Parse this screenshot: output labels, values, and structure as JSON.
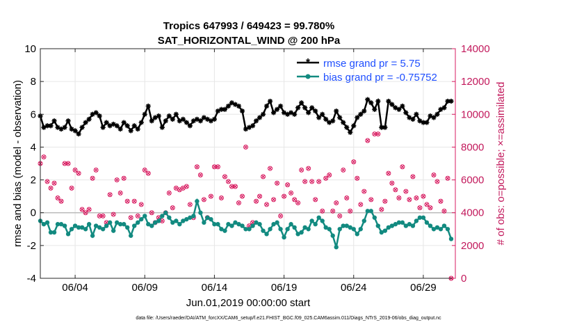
{
  "chart_data": {
    "type": "line",
    "title": "Tropics 647993 / 649423 = 99.780%",
    "subtitle": "SAT_HORIZONTAL_WIND @ 200 hPa",
    "xlabel": "Jun.01,2019 00:00:00 start",
    "ylabel": "rmse and bias (model - observation)",
    "y2label": "# of obs: o=possible; ×=assimilated",
    "xlim": [
      1.5,
      31.3
    ],
    "ylim": [
      -4,
      10
    ],
    "y2lim": [
      0,
      14000
    ],
    "x_ticks": [
      4,
      9,
      14,
      19,
      24,
      29
    ],
    "x_tick_labels": [
      "06/04",
      "06/09",
      "06/14",
      "06/19",
      "06/24",
      "06/29"
    ],
    "y_ticks": [
      -4,
      -2,
      0,
      2,
      4,
      6,
      8,
      10
    ],
    "y_tick_labels": [
      "-4",
      "-2",
      "0",
      "2",
      "4",
      "6",
      "8",
      "10"
    ],
    "y2_ticks": [
      0,
      2000,
      4000,
      6000,
      8000,
      10000,
      12000,
      14000
    ],
    "y2_tick_labels": [
      "0",
      "2000",
      "4000",
      "6000",
      "8000",
      "10000",
      "12000",
      "14000"
    ],
    "grid": true,
    "legend_position": "top-right",
    "footer": "data file: /Users/raeder/DAI/ATM_forcXX/CAM6_setup/f.e21.FHIST_BGC.f09_025.CAM6assim.011/Diags_NTrS_2019-06/obs_diag_output.nc",
    "colors": {
      "rmse": "#000000",
      "bias": "#128a80",
      "obs": "#d81b60",
      "zero_line": "#bbbbbb"
    },
    "series": [
      {
        "name": "rmse grand pr = 5.75",
        "x": [
          1.5,
          1.75,
          2,
          2.25,
          2.5,
          2.75,
          3,
          3.25,
          3.5,
          3.75,
          4,
          4.25,
          4.5,
          4.75,
          5,
          5.25,
          5.5,
          5.75,
          6,
          6.25,
          6.5,
          6.75,
          7,
          7.25,
          7.5,
          7.75,
          8,
          8.25,
          8.5,
          8.75,
          9,
          9.25,
          9.5,
          9.75,
          10,
          10.25,
          10.5,
          10.75,
          11,
          11.25,
          11.5,
          11.75,
          12,
          12.25,
          12.5,
          12.75,
          13,
          13.25,
          13.5,
          13.75,
          14,
          14.25,
          14.5,
          14.75,
          15,
          15.25,
          15.5,
          15.75,
          16,
          16.25,
          16.5,
          16.75,
          17,
          17.25,
          17.5,
          17.75,
          18,
          18.25,
          18.5,
          18.75,
          19,
          19.25,
          19.5,
          19.75,
          20,
          20.25,
          20.5,
          20.75,
          21,
          21.25,
          21.5,
          21.75,
          22,
          22.25,
          22.5,
          22.75,
          23,
          23.25,
          23.5,
          23.75,
          24,
          24.25,
          24.5,
          24.75,
          25,
          25.25,
          25.5,
          25.75,
          26,
          26.25,
          26.5,
          26.75,
          27,
          27.25,
          27.5,
          27.75,
          28,
          28.25,
          28.5,
          28.75,
          29,
          29.25,
          29.5,
          29.75,
          30,
          30.25,
          30.5,
          30.75,
          31
        ],
        "values": [
          5.9,
          5.2,
          5.3,
          5.3,
          5.6,
          5.2,
          5.1,
          5.2,
          5.6,
          5.1,
          5.0,
          4.8,
          5.2,
          5.5,
          5.7,
          6.0,
          6.1,
          5.9,
          5.2,
          5.5,
          5.3,
          5.4,
          5.3,
          5.1,
          5.5,
          5.3,
          5.0,
          5.3,
          5.1,
          5.5,
          6.0,
          6.5,
          5.6,
          5.8,
          5.9,
          5.2,
          5.6,
          5.9,
          5.7,
          6.0,
          5.6,
          5.7,
          5.5,
          5.3,
          5.6,
          5.7,
          5.6,
          5.8,
          5.7,
          5.6,
          5.7,
          6.2,
          6.3,
          6.3,
          6.5,
          6.7,
          6.6,
          6.5,
          6.2,
          5.1,
          5.2,
          5.3,
          5.6,
          5.8,
          6.0,
          6.5,
          6.8,
          6.1,
          6.3,
          6.5,
          6.1,
          6.0,
          6.1,
          6.0,
          6.4,
          6.7,
          6.4,
          6.1,
          6.4,
          6.2,
          5.8,
          6.0,
          5.7,
          5.5,
          5.6,
          6.2,
          5.8,
          5.5,
          5.2,
          4.9,
          5.3,
          5.8,
          6.0,
          6.2,
          6.9,
          6.7,
          6.3,
          6.8,
          5.2,
          5.2,
          6.8,
          6.6,
          6.4,
          6.3,
          6.5,
          6.1,
          5.8,
          5.7,
          6.0,
          5.6,
          5.5,
          5.5,
          5.9,
          5.8,
          6.0,
          6.3,
          6.4,
          6.8,
          6.8
        ],
        "marker": "*"
      },
      {
        "name": "bias grand pr = -0.75752",
        "x": [
          1.5,
          1.75,
          2,
          2.25,
          2.5,
          2.75,
          3,
          3.25,
          3.5,
          3.75,
          4,
          4.25,
          4.5,
          4.75,
          5,
          5.25,
          5.5,
          5.75,
          6,
          6.25,
          6.5,
          6.75,
          7,
          7.25,
          7.5,
          7.75,
          8,
          8.25,
          8.5,
          8.75,
          9,
          9.25,
          9.5,
          9.75,
          10,
          10.25,
          10.5,
          10.75,
          11,
          11.25,
          11.5,
          11.75,
          12,
          12.25,
          12.5,
          12.75,
          13,
          13.25,
          13.5,
          13.75,
          14,
          14.25,
          14.5,
          14.75,
          15,
          15.25,
          15.5,
          15.75,
          16,
          16.25,
          16.5,
          16.75,
          17,
          17.25,
          17.5,
          17.75,
          18,
          18.25,
          18.5,
          18.75,
          19,
          19.25,
          19.5,
          19.75,
          20,
          20.25,
          20.5,
          20.75,
          21,
          21.25,
          21.5,
          21.75,
          22,
          22.25,
          22.5,
          22.75,
          23,
          23.25,
          23.5,
          23.75,
          24,
          24.25,
          24.5,
          24.75,
          25,
          25.25,
          25.5,
          25.75,
          26,
          26.25,
          26.5,
          26.75,
          27,
          27.25,
          27.5,
          27.75,
          28,
          28.25,
          28.5,
          28.75,
          29,
          29.25,
          29.5,
          29.75,
          30,
          30.25,
          30.5,
          30.75,
          31
        ],
        "values": [
          -0.5,
          -0.7,
          -0.6,
          -1.2,
          -1.2,
          -0.7,
          -0.7,
          -0.8,
          -1.3,
          -1.0,
          -0.8,
          -0.9,
          -0.9,
          -1.0,
          -0.7,
          -1.4,
          -0.8,
          -0.9,
          -1.0,
          -0.8,
          -0.6,
          -1.1,
          -0.6,
          -0.7,
          -0.7,
          -0.9,
          -1.4,
          -0.8,
          -0.6,
          -0.4,
          -0.2,
          -0.7,
          -0.8,
          -0.6,
          -0.5,
          -0.2,
          0.0,
          -0.3,
          -0.6,
          -0.5,
          -0.7,
          -0.5,
          -0.4,
          -0.3,
          -0.2,
          0.7,
          0.0,
          -0.6,
          -0.3,
          -0.4,
          -0.7,
          -0.7,
          -1.0,
          -1.1,
          -0.7,
          -0.8,
          -0.6,
          -0.7,
          -0.8,
          -1.0,
          -1.0,
          -0.8,
          -0.6,
          -0.7,
          -1.1,
          -1.3,
          -1.0,
          -0.7,
          -0.6,
          -1.0,
          -1.5,
          -1.0,
          -0.7,
          -0.9,
          -1.3,
          -1.2,
          -0.9,
          -1.0,
          -0.5,
          -0.7,
          -0.3,
          -0.5,
          -0.9,
          -1.0,
          -1.4,
          -2.1,
          -1.0,
          -0.8,
          -0.8,
          -0.9,
          -1.0,
          -1.3,
          -1.0,
          -0.5,
          0.1,
          0.1,
          -0.3,
          -0.8,
          -1.2,
          -1.1,
          -0.9,
          -0.8,
          -0.7,
          -0.6,
          -0.6,
          -0.8,
          -0.7,
          -0.8,
          -0.5,
          -0.3,
          -0.3,
          -0.6,
          -0.8,
          -1.0,
          -0.9,
          -1.0,
          -0.8,
          -1.0,
          -1.6
        ],
        "marker": "o"
      },
      {
        "name": "# of obs possible / assimilated",
        "axis": "right",
        "x": [
          1.5,
          1.75,
          2,
          2.25,
          2.5,
          2.75,
          3,
          3.25,
          3.5,
          3.75,
          4,
          4.25,
          4.5,
          4.75,
          5,
          5.25,
          5.5,
          5.75,
          6,
          6.25,
          6.5,
          6.75,
          7,
          7.25,
          7.5,
          7.75,
          8,
          8.25,
          8.5,
          8.75,
          9,
          9.25,
          9.5,
          9.75,
          10,
          10.25,
          10.5,
          10.75,
          11,
          11.25,
          11.5,
          11.75,
          12,
          12.25,
          12.5,
          12.75,
          13,
          13.25,
          13.5,
          13.75,
          14,
          14.25,
          14.5,
          14.75,
          15,
          15.25,
          15.5,
          15.75,
          16,
          16.25,
          16.5,
          16.75,
          17,
          17.25,
          17.5,
          17.75,
          18,
          18.25,
          18.5,
          18.75,
          19,
          19.25,
          19.5,
          19.75,
          20,
          20.25,
          20.5,
          20.75,
          21,
          21.25,
          21.5,
          21.75,
          22,
          22.25,
          22.5,
          22.75,
          23,
          23.25,
          23.5,
          23.75,
          24,
          24.25,
          24.5,
          24.75,
          25,
          25.25,
          25.5,
          25.75,
          26,
          26.25,
          26.5,
          26.75,
          27,
          27.25,
          27.5,
          27.75,
          28,
          28.25,
          28.5,
          28.75,
          29,
          29.25,
          29.5,
          29.75,
          30,
          30.25,
          30.5,
          30.75,
          31
        ],
        "values": [
          7000,
          7400,
          5900,
          5500,
          5800,
          4900,
          4700,
          7000,
          7000,
          5500,
          6600,
          6400,
          4200,
          4000,
          4200,
          6100,
          6600,
          3800,
          3800,
          3400,
          5100,
          3900,
          6000,
          5200,
          6100,
          4700,
          3700,
          4700,
          3800,
          4500,
          6600,
          6400,
          4000,
          3400,
          3700,
          3500,
          4000,
          5200,
          4300,
          5500,
          5400,
          5500,
          5600,
          4500,
          3700,
          6800,
          6300,
          4800,
          3700,
          5000,
          6800,
          6800,
          4900,
          6200,
          5900,
          5600,
          5600,
          4600,
          5000,
          8000,
          3200,
          3400,
          4700,
          5000,
          6200,
          4500,
          6700,
          4800,
          5800,
          3800,
          5000,
          5700,
          5200,
          4800,
          4600,
          6600,
          5900,
          6700,
          5900,
          4800,
          5900,
          4100,
          6100,
          6300,
          4100,
          4600,
          3800,
          6600,
          4900,
          4100,
          7100,
          6100,
          4500,
          5300,
          8400,
          4800,
          8800,
          8800,
          4200,
          4700,
          6400,
          5800,
          5400,
          4900,
          6800,
          5300,
          4800,
          6200,
          4900,
          4300,
          5000,
          4500,
          4300,
          6300,
          5900,
          4700,
          4100,
          6100,
          0
        ],
        "marker": "o×"
      }
    ]
  }
}
